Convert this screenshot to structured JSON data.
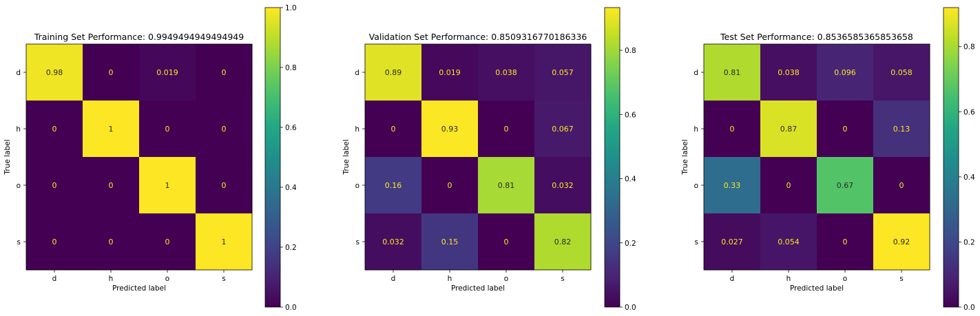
{
  "chart_data": [
    {
      "type": "heatmap",
      "title": "Training Set Performance: 0.9949494949494949",
      "xlabel": "Predicted label",
      "ylabel": "True label",
      "x_categories": [
        "d",
        "h",
        "o",
        "s"
      ],
      "y_categories": [
        "d",
        "h",
        "o",
        "s"
      ],
      "values": [
        [
          0.98,
          0,
          0.019,
          0
        ],
        [
          0,
          1,
          0,
          0
        ],
        [
          0,
          0,
          1,
          0
        ],
        [
          0,
          0,
          0,
          1
        ]
      ],
      "labels": [
        [
          "0.98",
          "0",
          "0.019",
          "0"
        ],
        [
          "0",
          "1",
          "0",
          "0"
        ],
        [
          "0",
          "0",
          "1",
          "0"
        ],
        [
          "0",
          "0",
          "0",
          "1"
        ]
      ],
      "colormap": "viridis",
      "colorbar": {
        "range": [
          0,
          1.0
        ],
        "ticks": [
          0.0,
          0.2,
          0.4,
          0.6,
          0.8,
          1.0
        ],
        "tick_labels": [
          "0.0",
          "0.2",
          "0.4",
          "0.6",
          "0.8",
          "1.0"
        ]
      }
    },
    {
      "type": "heatmap",
      "title": "Validation Set Performance: 0.8509316770186336",
      "xlabel": "Predicted label",
      "ylabel": "True label",
      "x_categories": [
        "d",
        "h",
        "o",
        "s"
      ],
      "y_categories": [
        "d",
        "h",
        "o",
        "s"
      ],
      "values": [
        [
          0.89,
          0.019,
          0.038,
          0.057
        ],
        [
          0,
          0.93,
          0,
          0.067
        ],
        [
          0.16,
          0,
          0.81,
          0.032
        ],
        [
          0.032,
          0.15,
          0,
          0.82
        ]
      ],
      "labels": [
        [
          "0.89",
          "0.019",
          "0.038",
          "0.057"
        ],
        [
          "0",
          "0.93",
          "0",
          "0.067"
        ],
        [
          "0.16",
          "0",
          "0.81",
          "0.032"
        ],
        [
          "0.032",
          "0.15",
          "0",
          "0.82"
        ]
      ],
      "colormap": "viridis",
      "colorbar": {
        "range": [
          0,
          0.933
        ],
        "ticks": [
          0.0,
          0.2,
          0.4,
          0.6,
          0.8
        ],
        "tick_labels": [
          "0.0",
          "0.2",
          "0.4",
          "0.6",
          "0.8"
        ]
      }
    },
    {
      "type": "heatmap",
      "title": "Test Set Performance: 0.8536585365853658",
      "xlabel": "Predicted label",
      "ylabel": "True label",
      "x_categories": [
        "d",
        "h",
        "o",
        "s"
      ],
      "y_categories": [
        "d",
        "h",
        "o",
        "s"
      ],
      "values": [
        [
          0.81,
          0.038,
          0.096,
          0.058
        ],
        [
          0,
          0.87,
          0,
          0.13
        ],
        [
          0.33,
          0,
          0.67,
          0
        ],
        [
          0.027,
          0.054,
          0,
          0.92
        ]
      ],
      "labels": [
        [
          "0.81",
          "0.038",
          "0.096",
          "0.058"
        ],
        [
          "0",
          "0.87",
          "0",
          "0.13"
        ],
        [
          "0.33",
          "0",
          "0.67",
          "0"
        ],
        [
          "0.027",
          "0.054",
          "0",
          "0.92"
        ]
      ],
      "colormap": "viridis",
      "colorbar": {
        "range": [
          0,
          0.92
        ],
        "ticks": [
          0.0,
          0.2,
          0.4,
          0.6,
          0.8
        ],
        "tick_labels": [
          "0.0",
          "0.2",
          "0.4",
          "0.6",
          "0.8"
        ]
      }
    }
  ]
}
